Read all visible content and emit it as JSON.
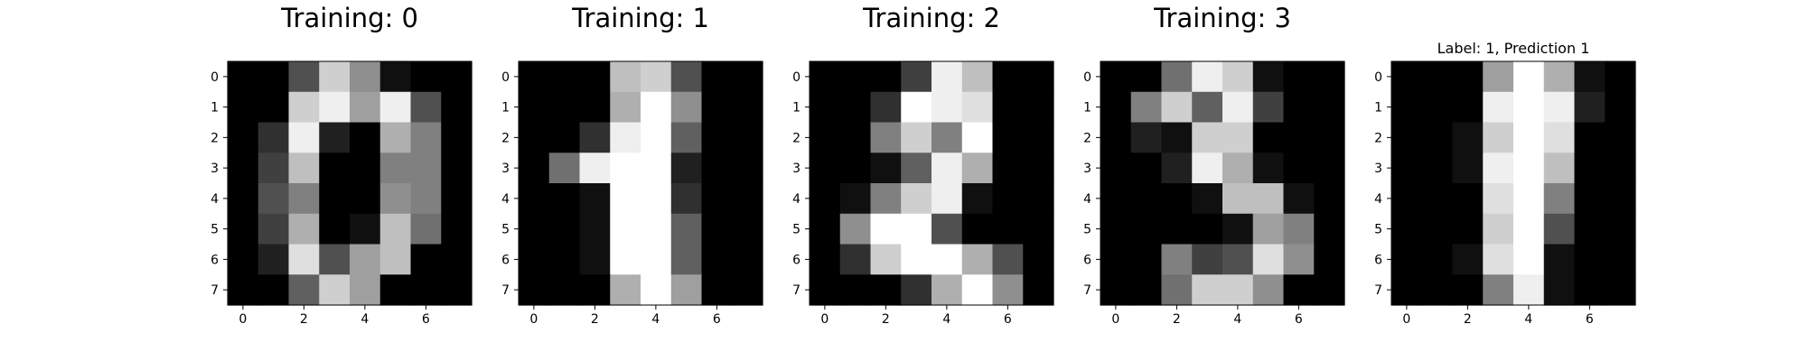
{
  "chart_data": [
    {
      "type": "heatmap",
      "title": "Training: 0",
      "title_size": "large",
      "colormap": "gray",
      "vmin": 0,
      "vmax": 16,
      "xticks": [
        0,
        2,
        4,
        6
      ],
      "yticks": [
        0,
        1,
        2,
        3,
        4,
        5,
        6,
        7
      ],
      "xlim": [
        -0.5,
        7.5
      ],
      "ylim": [
        7.5,
        -0.5
      ],
      "image": [
        [
          0,
          0,
          5,
          13,
          9,
          1,
          0,
          0
        ],
        [
          0,
          0,
          13,
          15,
          10,
          15,
          5,
          0
        ],
        [
          0,
          3,
          15,
          2,
          0,
          11,
          8,
          0
        ],
        [
          0,
          4,
          12,
          0,
          0,
          8,
          8,
          0
        ],
        [
          0,
          5,
          8,
          0,
          0,
          9,
          8,
          0
        ],
        [
          0,
          4,
          11,
          0,
          1,
          12,
          7,
          0
        ],
        [
          0,
          2,
          14,
          5,
          10,
          12,
          0,
          0
        ],
        [
          0,
          0,
          6,
          13,
          10,
          0,
          0,
          0
        ]
      ]
    },
    {
      "type": "heatmap",
      "title": "Training: 1",
      "title_size": "large",
      "colormap": "gray",
      "vmin": 0,
      "vmax": 16,
      "xticks": [
        0,
        2,
        4,
        6
      ],
      "yticks": [
        0,
        1,
        2,
        3,
        4,
        5,
        6,
        7
      ],
      "xlim": [
        -0.5,
        7.5
      ],
      "ylim": [
        7.5,
        -0.5
      ],
      "image": [
        [
          0,
          0,
          0,
          12,
          13,
          5,
          0,
          0
        ],
        [
          0,
          0,
          0,
          11,
          16,
          9,
          0,
          0
        ],
        [
          0,
          0,
          3,
          15,
          16,
          6,
          0,
          0
        ],
        [
          0,
          7,
          15,
          16,
          16,
          2,
          0,
          0
        ],
        [
          0,
          0,
          1,
          16,
          16,
          3,
          0,
          0
        ],
        [
          0,
          0,
          1,
          16,
          16,
          6,
          0,
          0
        ],
        [
          0,
          0,
          1,
          16,
          16,
          6,
          0,
          0
        ],
        [
          0,
          0,
          0,
          11,
          16,
          10,
          0,
          0
        ]
      ]
    },
    {
      "type": "heatmap",
      "title": "Training: 2",
      "title_size": "large",
      "colormap": "gray",
      "vmin": 0,
      "vmax": 16,
      "xticks": [
        0,
        2,
        4,
        6
      ],
      "yticks": [
        0,
        1,
        2,
        3,
        4,
        5,
        6,
        7
      ],
      "xlim": [
        -0.5,
        7.5
      ],
      "ylim": [
        7.5,
        -0.5
      ],
      "image": [
        [
          0,
          0,
          0,
          4,
          15,
          12,
          0,
          0
        ],
        [
          0,
          0,
          3,
          16,
          15,
          14,
          0,
          0
        ],
        [
          0,
          0,
          8,
          13,
          8,
          16,
          0,
          0
        ],
        [
          0,
          0,
          1,
          6,
          15,
          11,
          0,
          0
        ],
        [
          0,
          1,
          8,
          13,
          15,
          1,
          0,
          0
        ],
        [
          0,
          9,
          16,
          16,
          5,
          0,
          0,
          0
        ],
        [
          0,
          3,
          13,
          16,
          16,
          11,
          5,
          0
        ],
        [
          0,
          0,
          0,
          3,
          11,
          16,
          9,
          0
        ]
      ]
    },
    {
      "type": "heatmap",
      "title": "Training: 3",
      "title_size": "large",
      "colormap": "gray",
      "vmin": 0,
      "vmax": 16,
      "xticks": [
        0,
        2,
        4,
        6
      ],
      "yticks": [
        0,
        1,
        2,
        3,
        4,
        5,
        6,
        7
      ],
      "xlim": [
        -0.5,
        7.5
      ],
      "ylim": [
        7.5,
        -0.5
      ],
      "image": [
        [
          0,
          0,
          7,
          15,
          13,
          1,
          0,
          0
        ],
        [
          0,
          8,
          13,
          6,
          15,
          4,
          0,
          0
        ],
        [
          0,
          2,
          1,
          13,
          13,
          0,
          0,
          0
        ],
        [
          0,
          0,
          2,
          15,
          11,
          1,
          0,
          0
        ],
        [
          0,
          0,
          0,
          1,
          12,
          12,
          1,
          0
        ],
        [
          0,
          0,
          0,
          0,
          1,
          10,
          8,
          0
        ],
        [
          0,
          0,
          8,
          4,
          5,
          14,
          9,
          0
        ],
        [
          0,
          0,
          7,
          13,
          13,
          9,
          0,
          0
        ]
      ]
    },
    {
      "type": "heatmap",
      "title": "Label: 1, Prediction 1",
      "title_size": "small",
      "colormap": "gray",
      "vmin": 0,
      "vmax": 16,
      "xticks": [
        0,
        2,
        4,
        6
      ],
      "yticks": [
        0,
        1,
        2,
        3,
        4,
        5,
        6,
        7
      ],
      "xlim": [
        -0.5,
        7.5
      ],
      "ylim": [
        7.5,
        -0.5
      ],
      "image": [
        [
          0,
          0,
          0,
          10,
          16,
          11,
          1,
          0
        ],
        [
          0,
          0,
          0,
          15,
          16,
          15,
          2,
          0
        ],
        [
          0,
          0,
          1,
          13,
          16,
          14,
          0,
          0
        ],
        [
          0,
          0,
          1,
          15,
          16,
          12,
          0,
          0
        ],
        [
          0,
          0,
          0,
          14,
          16,
          8,
          0,
          0
        ],
        [
          0,
          0,
          0,
          13,
          16,
          5,
          0,
          0
        ],
        [
          0,
          0,
          1,
          14,
          16,
          1,
          0,
          0
        ],
        [
          0,
          0,
          0,
          8,
          15,
          1,
          0,
          0
        ]
      ]
    }
  ]
}
